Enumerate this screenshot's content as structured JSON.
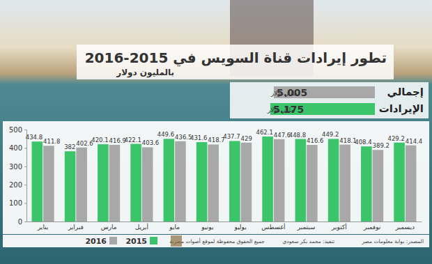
{
  "chart_data": {
    "type": "bar",
    "title": "تطور إيرادات قناة السويس في 2015-2016",
    "subtitle": "بالمليون دولار",
    "categories": [
      "يناير",
      "فبراير",
      "مارس",
      "أبريل",
      "مايو",
      "يونيو",
      "يوليو",
      "أغسطس",
      "سبتمبر",
      "أكتوبر",
      "نوفمبر",
      "ديسمبر"
    ],
    "series": [
      {
        "name": "2015",
        "color": "#3cc46a",
        "values": [
          434.8,
          382,
          420.1,
          422.1,
          449.6,
          431.6,
          437.7,
          462.1,
          448.8,
          449.2,
          408.4,
          429.2
        ]
      },
      {
        "name": "2016",
        "color": "#a8a8a8",
        "values": [
          411.8,
          402.6,
          416.9,
          403.6,
          436.5,
          418.7,
          429,
          447.6,
          416.6,
          418.1,
          389.2,
          414.4
        ]
      }
    ],
    "ylim": [
      0,
      500
    ],
    "yticks": [
      0,
      100,
      200,
      300,
      400,
      500
    ],
    "grid": false,
    "data_labels": true,
    "legend": "bottom left",
    "totals": {
      "labels": [
        "إجمالي",
        "الإيرادات"
      ],
      "unit": "مليار دولار",
      "values": [
        5.005,
        5.175
      ],
      "colors": [
        "#a8a8a8",
        "#3cc46a"
      ]
    },
    "source": "المصدر: بوابة معلومات مصر",
    "credit": "تنفيذ: محمد بكر سعودي",
    "rights": "جميع الحقوق محفوظة لموقع أصوات مصرية"
  }
}
